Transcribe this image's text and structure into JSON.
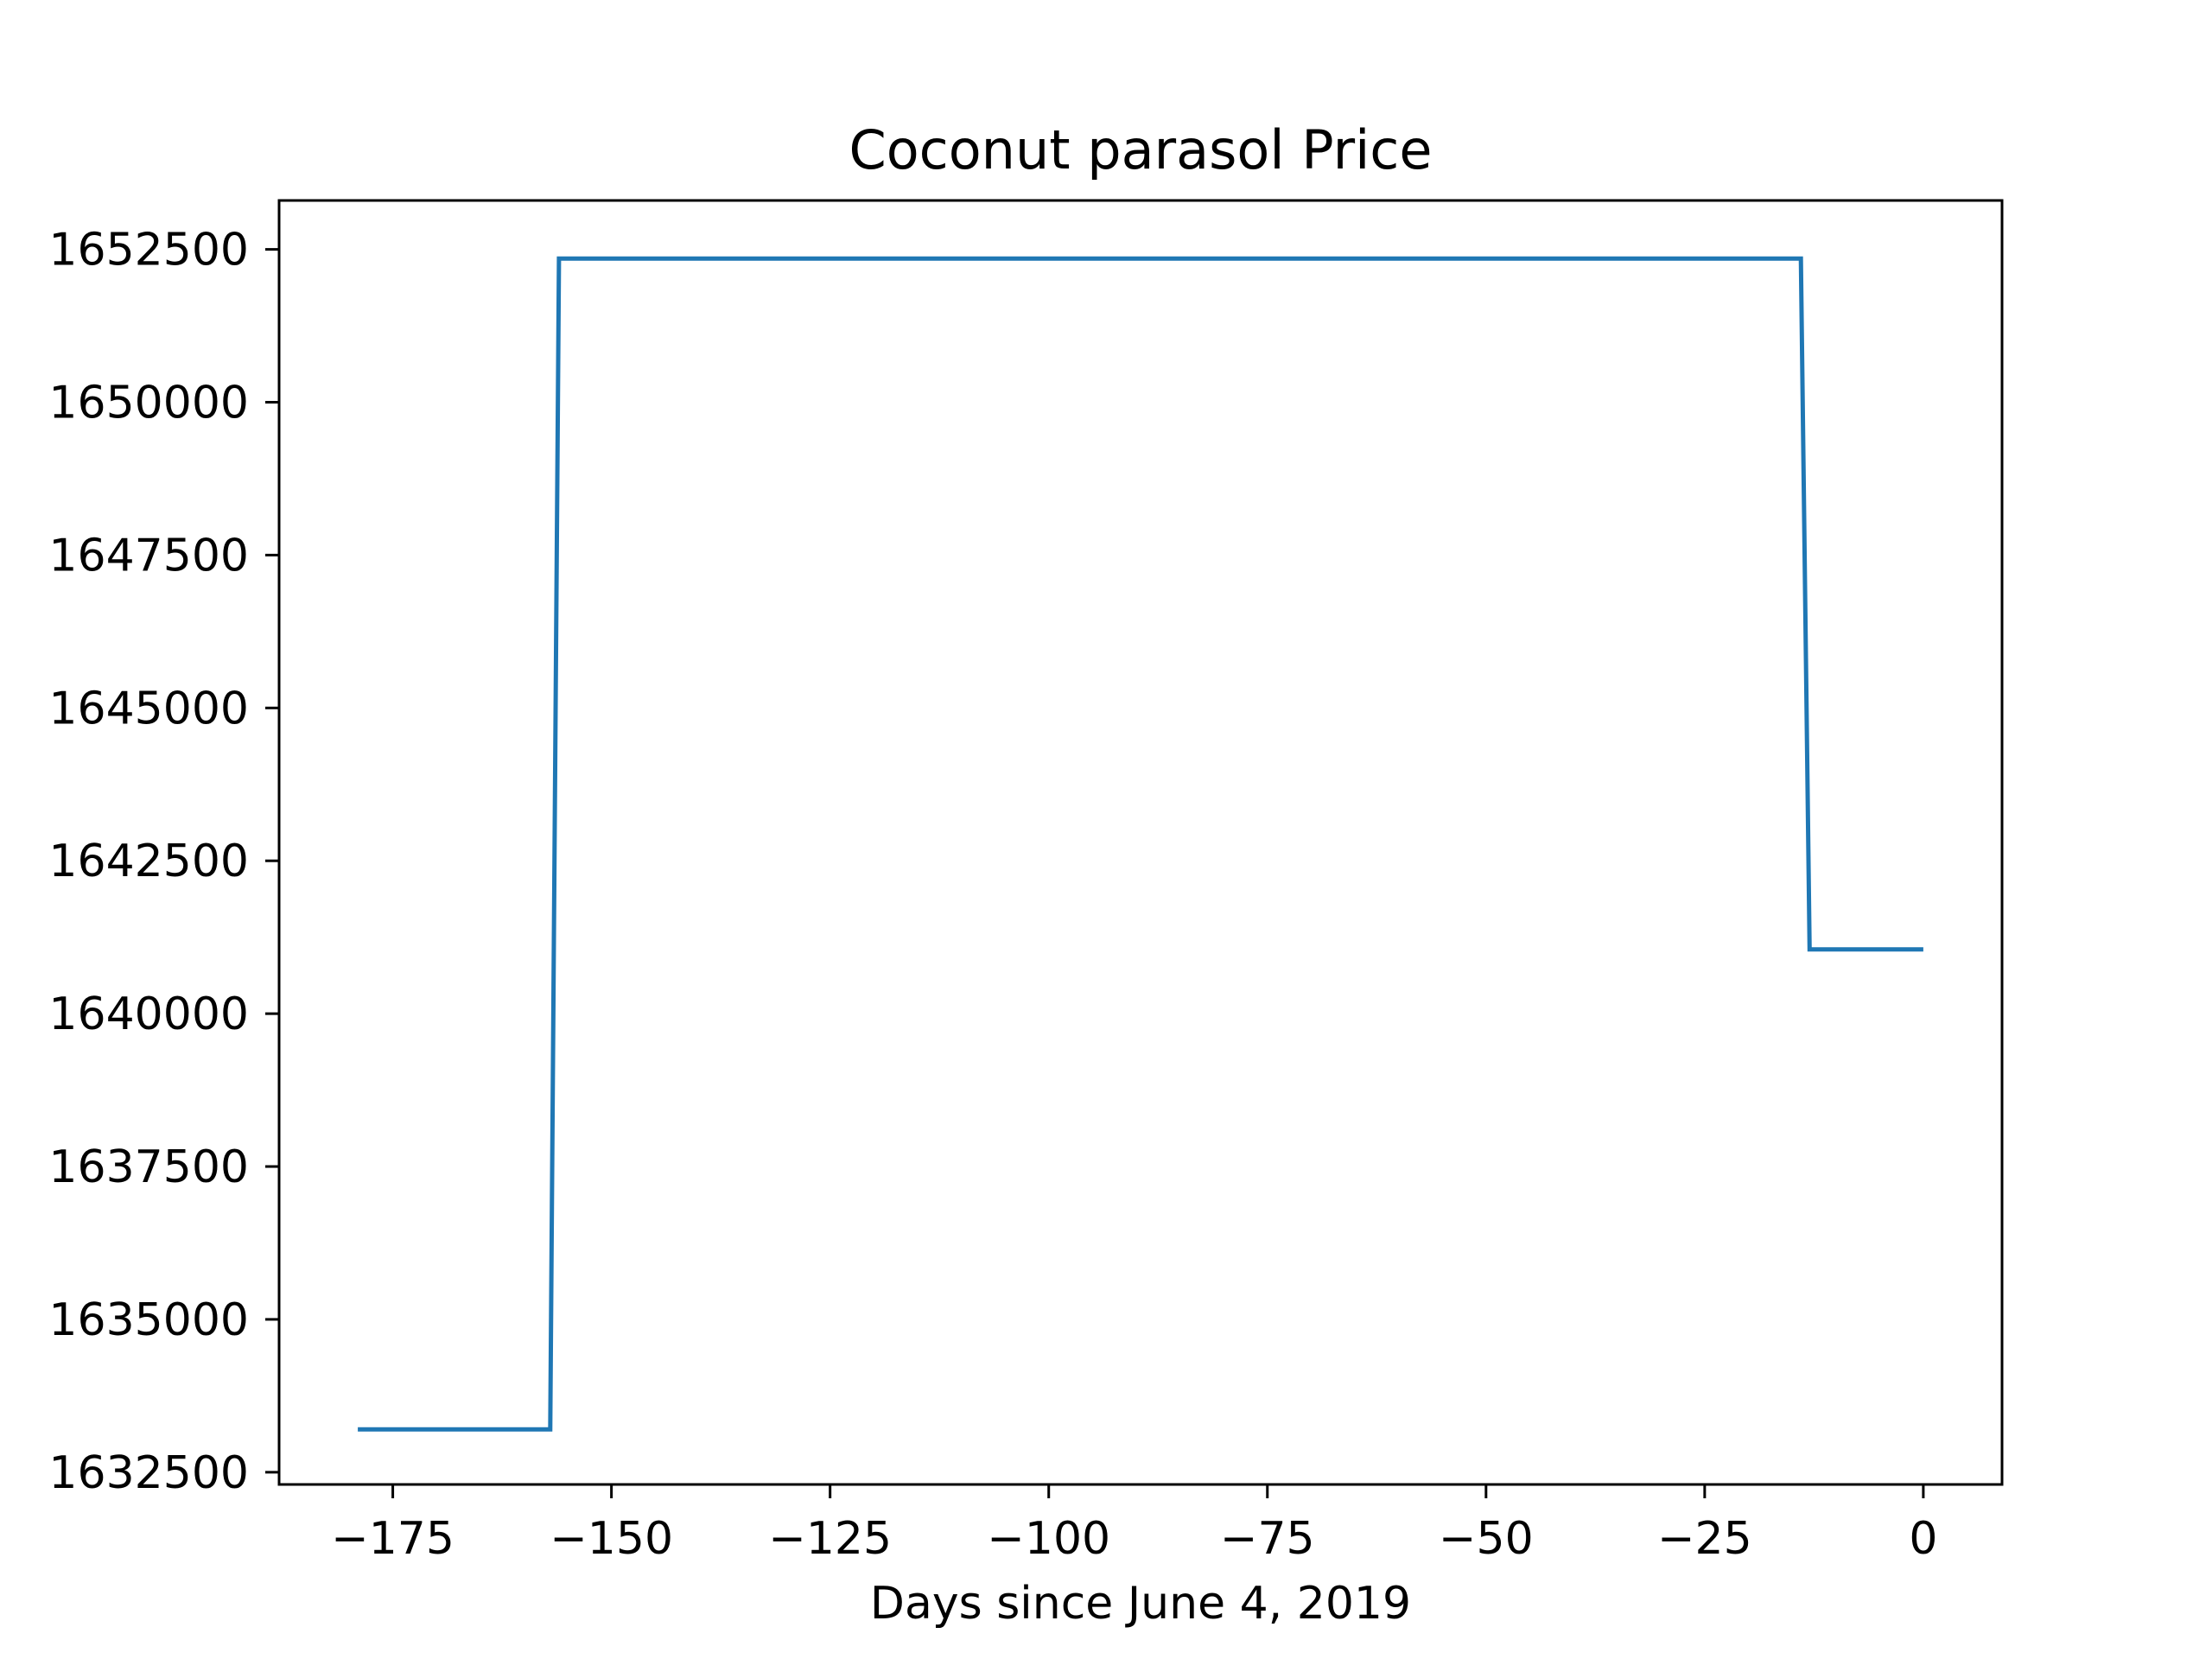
{
  "chart_data": {
    "type": "line",
    "title": "Coconut parasol Price",
    "xlabel": "Days since June 4, 2019",
    "ylabel": "",
    "xlim": [
      -188,
      9
    ],
    "ylim": [
      1632300,
      1653300
    ],
    "grid": false,
    "line_style": "steps",
    "x_ticks": [
      -175,
      -150,
      -125,
      -100,
      -75,
      -50,
      -25,
      0
    ],
    "x_tick_labels": [
      "−175",
      "−150",
      "−125",
      "−100",
      "−75",
      "−50",
      "−25",
      "0"
    ],
    "y_ticks": [
      1632500,
      1635000,
      1637500,
      1640000,
      1642500,
      1645000,
      1647500,
      1650000,
      1652500
    ],
    "y_tick_labels": [
      "1632500",
      "1635000",
      "1637500",
      "1640000",
      "1642500",
      "1645000",
      "1647500",
      "1650000",
      "1652500"
    ],
    "series": [
      {
        "name": "",
        "color": "#1f77b4",
        "points": [
          {
            "x": -179,
            "y": 1633200
          },
          {
            "x": -157,
            "y": 1633200
          },
          {
            "x": -156,
            "y": 1652350
          },
          {
            "x": -14,
            "y": 1652350
          },
          {
            "x": -13,
            "y": 1641050
          },
          {
            "x": 0,
            "y": 1641050
          }
        ]
      }
    ]
  }
}
